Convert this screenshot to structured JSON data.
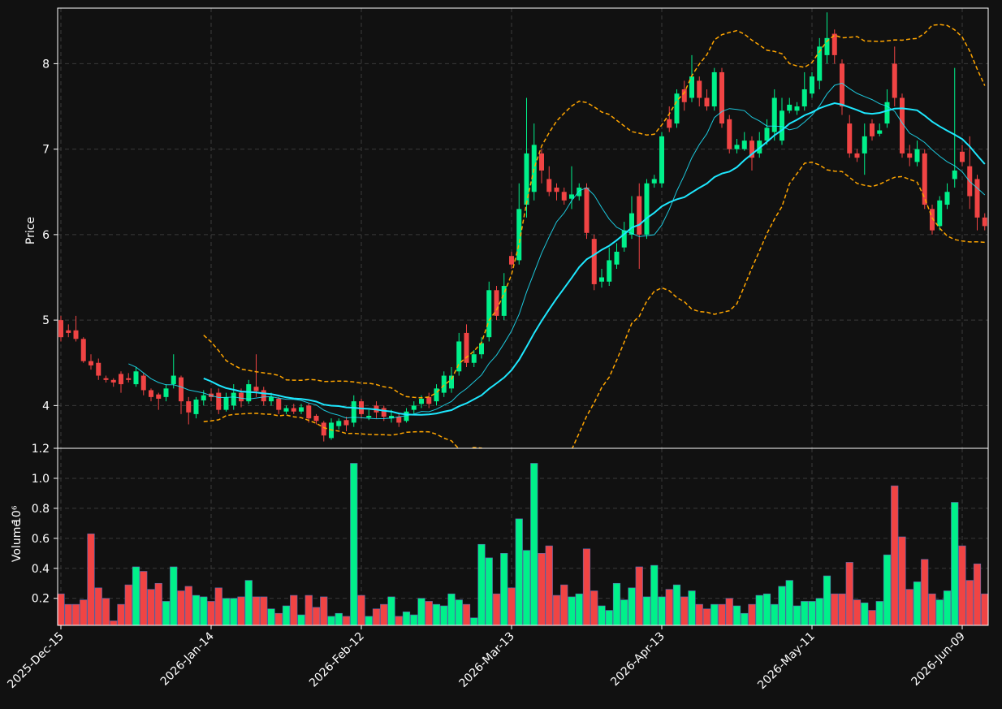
{
  "chart_data": {
    "type": "candlestick",
    "y_label": "Price",
    "volume_label": "Volume",
    "volume_scale": "10⁶",
    "up_color": "#00f08a",
    "down_color": "#f04444",
    "ma_color": "#1ee8ff",
    "band_color": "#ffa500",
    "grid": true,
    "categories": [
      "2025-Dec-15",
      null,
      null,
      null,
      null,
      null,
      null,
      null,
      null,
      null,
      null,
      null,
      null,
      null,
      null,
      null,
      null,
      null,
      null,
      null,
      "2026-Jan-14",
      null,
      null,
      null,
      null,
      null,
      null,
      null,
      null,
      null,
      null,
      null,
      null,
      null,
      null,
      null,
      null,
      null,
      null,
      null,
      "2026-Feb-12",
      null,
      null,
      null,
      null,
      null,
      null,
      null,
      null,
      null,
      null,
      null,
      null,
      null,
      null,
      null,
      null,
      null,
      null,
      null,
      "2026-Mar-13",
      null,
      null,
      null,
      null,
      null,
      null,
      null,
      null,
      null,
      null,
      null,
      null,
      null,
      null,
      null,
      null,
      null,
      null,
      null,
      "2026-Apr-13",
      null,
      null,
      null,
      null,
      null,
      null,
      null,
      null,
      null,
      null,
      null,
      null,
      null,
      null,
      null,
      null,
      null,
      null,
      null,
      "2026-May-11",
      null,
      null,
      null,
      null,
      null,
      null,
      null,
      null,
      null,
      null,
      null,
      null,
      null,
      null,
      null,
      null,
      null,
      null,
      null,
      "2026-Jun-09",
      null,
      null,
      null
    ],
    "open": [
      5.0,
      4.88,
      4.88,
      4.78,
      4.52,
      4.5,
      4.32,
      4.3,
      4.37,
      4.32,
      4.25,
      4.35,
      4.18,
      4.13,
      4.1,
      4.25,
      4.33,
      4.05,
      3.9,
      4.06,
      4.14,
      4.15,
      3.95,
      4.0,
      4.15,
      4.05,
      4.22,
      4.18,
      4.05,
      4.08,
      3.93,
      3.97,
      3.93,
      4.0,
      3.88,
      3.8,
      3.62,
      3.76,
      3.83,
      3.8,
      4.05,
      3.86,
      4.0,
      3.97,
      3.85,
      3.87,
      3.82,
      3.95,
      4.02,
      4.1,
      4.05,
      4.15,
      4.2,
      4.4,
      4.85,
      4.5,
      4.6,
      4.8,
      5.35,
      5.05,
      5.75,
      5.7,
      6.35,
      6.5,
      6.95,
      6.65,
      6.55,
      6.5,
      6.42,
      6.45,
      6.55,
      5.95,
      5.45,
      5.45,
      5.65,
      5.85,
      6.0,
      6.45,
      6.0,
      6.6,
      6.6,
      7.35,
      7.3,
      7.7,
      7.6,
      7.8,
      7.6,
      7.5,
      7.9,
      7.35,
      7.0,
      7.0,
      7.1,
      6.95,
      7.1,
      7.2,
      7.1,
      7.45,
      7.45,
      7.5,
      7.65,
      7.8,
      8.1,
      8.35,
      8.0,
      7.3,
      6.95,
      6.95,
      7.3,
      7.18,
      7.3,
      8.0,
      7.6,
      6.95,
      6.85,
      6.95,
      6.3,
      6.1,
      6.35,
      6.65,
      6.97,
      6.8,
      6.65,
      6.2
    ],
    "high": [
      5.05,
      4.95,
      5.05,
      4.8,
      4.6,
      4.55,
      4.35,
      4.32,
      4.4,
      4.38,
      4.45,
      4.38,
      4.2,
      4.15,
      4.25,
      4.6,
      4.35,
      4.1,
      4.1,
      4.18,
      4.2,
      4.2,
      4.15,
      4.25,
      4.2,
      4.3,
      4.6,
      4.22,
      4.15,
      4.1,
      4.0,
      4.02,
      4.02,
      4.03,
      3.9,
      3.82,
      3.85,
      3.85,
      3.87,
      4.12,
      4.08,
      3.95,
      4.05,
      4.0,
      3.95,
      3.9,
      3.97,
      4.05,
      4.12,
      4.15,
      4.25,
      4.4,
      4.45,
      4.85,
      4.95,
      4.65,
      4.8,
      5.45,
      5.4,
      5.55,
      5.8,
      6.6,
      7.6,
      7.3,
      7.0,
      6.8,
      6.6,
      6.55,
      6.8,
      6.6,
      6.6,
      6.0,
      5.6,
      5.85,
      5.9,
      6.15,
      6.45,
      6.6,
      6.65,
      6.7,
      7.2,
      7.5,
      7.7,
      7.8,
      8.1,
      7.85,
      7.7,
      7.95,
      7.95,
      7.4,
      7.12,
      7.2,
      7.15,
      7.2,
      7.35,
      7.7,
      7.6,
      7.6,
      7.55,
      7.9,
      7.9,
      8.3,
      8.6,
      8.4,
      8.05,
      7.4,
      7.0,
      7.3,
      7.35,
      7.3,
      7.7,
      8.2,
      7.65,
      7.05,
      7.1,
      7.0,
      6.35,
      6.45,
      6.6,
      7.95,
      7.05,
      7.15,
      6.7,
      6.25
    ],
    "low": [
      4.75,
      4.8,
      4.75,
      4.5,
      4.42,
      4.3,
      4.27,
      4.22,
      4.15,
      4.27,
      4.22,
      4.12,
      4.05,
      3.95,
      4.05,
      4.2,
      3.9,
      3.78,
      3.85,
      4.0,
      4.05,
      3.9,
      3.93,
      3.95,
      3.98,
      4.02,
      4.1,
      4.0,
      4.0,
      3.9,
      3.9,
      3.9,
      3.9,
      3.8,
      3.78,
      3.58,
      3.6,
      3.72,
      3.7,
      3.75,
      3.85,
      3.83,
      3.85,
      3.82,
      3.8,
      3.75,
      3.8,
      3.9,
      3.97,
      3.97,
      4.0,
      4.1,
      4.15,
      4.35,
      4.45,
      4.45,
      4.55,
      4.75,
      5.0,
      5.0,
      5.6,
      5.65,
      6.2,
      6.4,
      6.6,
      6.45,
      6.4,
      6.35,
      6.3,
      6.4,
      5.95,
      5.35,
      5.38,
      5.4,
      5.6,
      5.8,
      5.95,
      5.6,
      5.95,
      6.55,
      6.55,
      7.2,
      7.25,
      7.45,
      7.55,
      7.5,
      7.45,
      7.45,
      7.25,
      6.95,
      6.95,
      6.98,
      6.75,
      6.9,
      7.05,
      7.1,
      7.05,
      7.42,
      7.4,
      7.45,
      7.6,
      7.7,
      8.0,
      8.0,
      7.4,
      6.9,
      6.85,
      6.7,
      7.1,
      7.15,
      7.25,
      7.5,
      6.9,
      6.8,
      6.8,
      6.3,
      6.0,
      6.05,
      6.3,
      6.55,
      6.8,
      6.3,
      6.05,
      6.05
    ],
    "close": [
      4.8,
      4.85,
      4.78,
      4.52,
      4.47,
      4.35,
      4.3,
      4.27,
      4.25,
      4.3,
      4.4,
      4.18,
      4.1,
      4.08,
      4.2,
      4.35,
      4.05,
      3.92,
      4.07,
      4.12,
      4.1,
      3.95,
      4.1,
      4.15,
      4.05,
      4.25,
      4.17,
      4.05,
      4.1,
      3.95,
      3.97,
      3.93,
      3.98,
      3.85,
      3.82,
      3.65,
      3.8,
      3.82,
      3.77,
      4.05,
      3.9,
      3.88,
      3.92,
      3.87,
      3.88,
      3.8,
      3.93,
      4.0,
      4.08,
      4.02,
      4.2,
      4.35,
      4.35,
      4.75,
      4.5,
      4.6,
      4.73,
      5.35,
      5.05,
      5.4,
      5.65,
      6.3,
      6.95,
      7.05,
      6.75,
      6.5,
      6.5,
      6.4,
      6.47,
      6.55,
      6.02,
      5.42,
      5.5,
      5.7,
      5.8,
      6.05,
      6.25,
      6.0,
      6.6,
      6.65,
      7.15,
      7.25,
      7.65,
      7.55,
      7.85,
      7.6,
      7.5,
      7.9,
      7.3,
      7.0,
      7.05,
      7.1,
      6.9,
      7.1,
      7.25,
      7.6,
      7.45,
      7.52,
      7.5,
      7.7,
      7.85,
      8.2,
      8.3,
      8.1,
      7.5,
      6.95,
      6.9,
      7.15,
      7.15,
      7.22,
      7.55,
      7.6,
      6.95,
      6.9,
      7.0,
      6.35,
      6.05,
      6.4,
      6.5,
      6.75,
      6.85,
      6.45,
      6.2,
      6.1
    ],
    "volume": [
      0.23,
      0.16,
      0.16,
      0.19,
      0.63,
      0.27,
      0.2,
      0.05,
      0.16,
      0.29,
      0.41,
      0.38,
      0.26,
      0.3,
      0.18,
      0.41,
      0.25,
      0.28,
      0.22,
      0.21,
      0.18,
      0.27,
      0.2,
      0.2,
      0.21,
      0.32,
      0.21,
      0.21,
      0.13,
      0.1,
      0.15,
      0.22,
      0.09,
      0.22,
      0.14,
      0.21,
      0.08,
      0.1,
      0.08,
      1.1,
      0.22,
      0.08,
      0.13,
      0.16,
      0.21,
      0.08,
      0.11,
      0.09,
      0.2,
      0.18,
      0.16,
      0.15,
      0.23,
      0.19,
      0.16,
      0.07,
      0.56,
      0.47,
      0.23,
      0.5,
      0.27,
      0.73,
      0.52,
      1.1,
      0.5,
      0.55,
      0.22,
      0.29,
      0.21,
      0.23,
      0.53,
      0.25,
      0.15,
      0.12,
      0.3,
      0.19,
      0.27,
      0.41,
      0.21,
      0.42,
      0.21,
      0.26,
      0.29,
      0.21,
      0.25,
      0.16,
      0.13,
      0.16,
      0.16,
      0.2,
      0.15,
      0.1,
      0.16,
      0.22,
      0.23,
      0.16,
      0.28,
      0.32,
      0.15,
      0.18,
      0.18,
      0.2,
      0.35,
      0.23,
      0.23,
      0.44,
      0.19,
      0.17,
      0.12,
      0.18,
      0.49,
      0.95,
      0.61,
      0.26,
      0.31,
      0.46,
      0.23,
      0.19,
      0.25,
      0.84,
      0.55,
      0.32,
      0.43,
      0.23
    ],
    "ylim": [
      3.5,
      8.65
    ],
    "yticks": [
      4,
      5,
      6,
      7,
      8
    ],
    "vlim": [
      0.02,
      1.2
    ],
    "vticks": [
      0.2,
      0.4,
      0.6,
      0.8,
      {
        "value": 1,
        "label": "1.0"
      },
      1.2
    ]
  }
}
